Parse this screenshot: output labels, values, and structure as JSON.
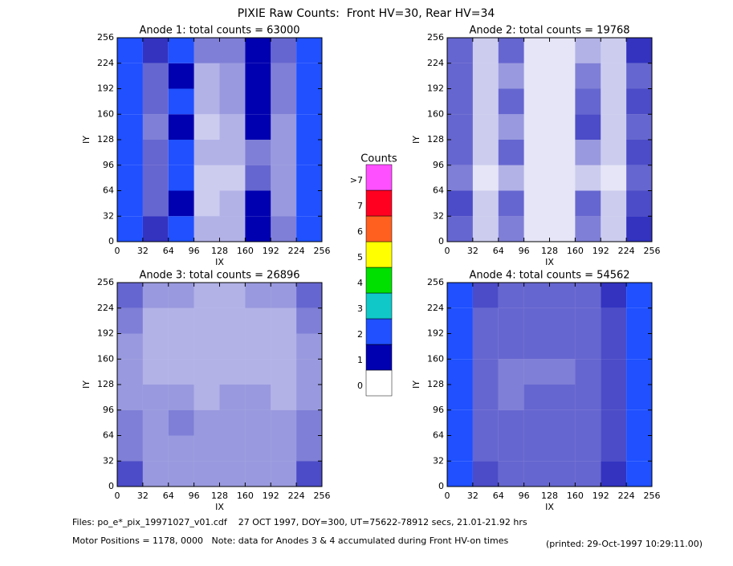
{
  "title": "PIXIE Raw Counts:  Front HV=30, Rear HV=34",
  "chart_data": [
    {
      "type": "heatmap",
      "title": "Anode 1: total counts = 63000",
      "xlabel": "IX",
      "ylabel": "IY",
      "xlim": [
        0,
        256
      ],
      "ylim": [
        0,
        256
      ],
      "xticks": [
        0,
        32,
        64,
        96,
        128,
        160,
        192,
        224,
        256
      ],
      "yticks": [
        0,
        32,
        64,
        96,
        128,
        160,
        192,
        224,
        256
      ],
      "values": [
        [
          2.5,
          0.8,
          2.2,
          0.3,
          0.3,
          1.0,
          0.5,
          2.8
        ],
        [
          2.5,
          0.6,
          1.5,
          0.2,
          0.3,
          1.5,
          0.4,
          2.5
        ],
        [
          2.2,
          0.6,
          2.0,
          0.2,
          0.2,
          0.6,
          0.4,
          2.5
        ],
        [
          2.5,
          0.6,
          2.2,
          0.3,
          0.3,
          0.5,
          0.4,
          2.8
        ],
        [
          2.5,
          0.5,
          1.0,
          0.2,
          0.3,
          1.5,
          0.4,
          2.5
        ],
        [
          2.8,
          0.6,
          2.2,
          0.3,
          0.4,
          1.0,
          0.5,
          2.8
        ],
        [
          2.2,
          0.6,
          1.5,
          0.3,
          0.4,
          1.2,
          0.5,
          2.5
        ],
        [
          2.5,
          0.8,
          2.2,
          0.5,
          0.5,
          1.5,
          0.6,
          2.5
        ]
      ]
    },
    {
      "type": "heatmap",
      "title": "Anode 2: total counts = 19768",
      "xlabel": "IX",
      "ylabel": "IY",
      "xlim": [
        0,
        256
      ],
      "ylim": [
        0,
        256
      ],
      "xticks": [
        0,
        32,
        64,
        96,
        128,
        160,
        192,
        224,
        256
      ],
      "yticks": [
        0,
        32,
        64,
        96,
        128,
        160,
        192,
        224,
        256
      ],
      "values": [
        [
          0.6,
          0.2,
          0.5,
          0.1,
          0.1,
          0.5,
          0.2,
          0.8
        ],
        [
          0.7,
          0.2,
          0.6,
          0.1,
          0.1,
          0.6,
          0.2,
          0.7
        ],
        [
          0.5,
          0.1,
          0.3,
          0.1,
          0.1,
          0.2,
          0.1,
          0.6
        ],
        [
          0.6,
          0.2,
          0.6,
          0.1,
          0.1,
          0.4,
          0.2,
          0.7
        ],
        [
          0.6,
          0.2,
          0.4,
          0.1,
          0.1,
          0.7,
          0.2,
          0.6
        ],
        [
          0.6,
          0.2,
          0.6,
          0.1,
          0.1,
          0.6,
          0.2,
          0.7
        ],
        [
          0.6,
          0.2,
          0.4,
          0.1,
          0.1,
          0.5,
          0.2,
          0.6
        ],
        [
          0.6,
          0.2,
          0.6,
          0.1,
          0.1,
          0.3,
          0.2,
          0.8
        ]
      ]
    },
    {
      "type": "heatmap",
      "title": "Anode 3: total counts = 26896",
      "xlabel": "IX",
      "ylabel": "IY",
      "xlim": [
        0,
        256
      ],
      "ylim": [
        0,
        256
      ],
      "xticks": [
        0,
        32,
        64,
        96,
        128,
        160,
        192,
        224,
        256
      ],
      "yticks": [
        0,
        32,
        64,
        96,
        128,
        160,
        192,
        224,
        256
      ],
      "values": [
        [
          0.7,
          0.4,
          0.4,
          0.4,
          0.4,
          0.4,
          0.4,
          0.7
        ],
        [
          0.5,
          0.4,
          0.4,
          0.4,
          0.4,
          0.4,
          0.4,
          0.5
        ],
        [
          0.5,
          0.4,
          0.5,
          0.4,
          0.4,
          0.4,
          0.4,
          0.5
        ],
        [
          0.4,
          0.4,
          0.4,
          0.3,
          0.4,
          0.4,
          0.3,
          0.4
        ],
        [
          0.4,
          0.3,
          0.3,
          0.3,
          0.3,
          0.3,
          0.3,
          0.4
        ],
        [
          0.4,
          0.3,
          0.3,
          0.3,
          0.3,
          0.3,
          0.3,
          0.4
        ],
        [
          0.5,
          0.3,
          0.3,
          0.3,
          0.3,
          0.3,
          0.3,
          0.5
        ],
        [
          0.6,
          0.4,
          0.4,
          0.3,
          0.3,
          0.4,
          0.4,
          0.6
        ]
      ]
    },
    {
      "type": "heatmap",
      "title": "Anode 4: total counts = 54562",
      "xlabel": "IX",
      "ylabel": "IY",
      "xlim": [
        0,
        256
      ],
      "ylim": [
        0,
        256
      ],
      "xticks": [
        0,
        32,
        64,
        96,
        128,
        160,
        192,
        224,
        256
      ],
      "yticks": [
        0,
        32,
        64,
        96,
        128,
        160,
        192,
        224,
        256
      ],
      "values": [
        [
          2.0,
          0.7,
          0.6,
          0.6,
          0.6,
          0.6,
          0.8,
          2.2
        ],
        [
          2.0,
          0.6,
          0.6,
          0.6,
          0.6,
          0.6,
          0.7,
          2.2
        ],
        [
          2.2,
          0.6,
          0.6,
          0.6,
          0.6,
          0.6,
          0.7,
          2.2
        ],
        [
          2.0,
          0.6,
          0.5,
          0.6,
          0.6,
          0.6,
          0.7,
          2.0
        ],
        [
          2.0,
          0.6,
          0.5,
          0.5,
          0.5,
          0.6,
          0.7,
          2.2
        ],
        [
          2.0,
          0.6,
          0.6,
          0.6,
          0.6,
          0.6,
          0.7,
          2.2
        ],
        [
          2.0,
          0.6,
          0.6,
          0.6,
          0.6,
          0.6,
          0.7,
          2.2
        ],
        [
          2.2,
          0.7,
          0.6,
          0.6,
          0.6,
          0.6,
          0.8,
          2.5
        ]
      ]
    }
  ],
  "colorbar": {
    "title": "Counts",
    "ticks": [
      0,
      1,
      2,
      3,
      4,
      5,
      6,
      7,
      {
        "value": 8,
        "label": ">7"
      }
    ],
    "colors": [
      "#ffffff",
      "#0000b0",
      "#2050ff",
      "#10c8c8",
      "#00e000",
      "#ffff00",
      "#ff6020",
      "#ff0020",
      "#ff50ff"
    ]
  },
  "footer": {
    "files": "Files: po_e*_pix_19971027_v01.cdf    27 OCT 1997, DOY=300, UT=75622-78912 secs, 21.01-21.92 hrs",
    "note": "Motor Positions = 1178, 0000   Note: data for Anodes 3 & 4 accumulated during Front HV-on times",
    "printed": "(printed: 29-Oct-1997 10:29:11.00)"
  }
}
